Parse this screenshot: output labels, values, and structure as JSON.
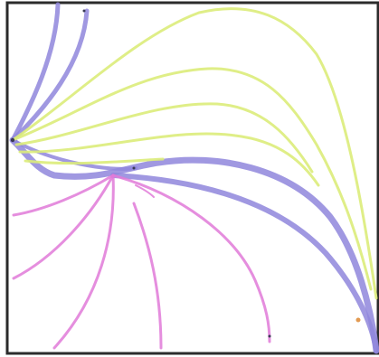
{
  "colors": {
    "background": "#ffffff",
    "border": "#2b2b2b",
    "violet": "#8f86dc",
    "yellow_green": "#dcec7a",
    "magenta": "#e07ad8",
    "orange": "#e29a52",
    "dark": "#3a3a55"
  }
}
